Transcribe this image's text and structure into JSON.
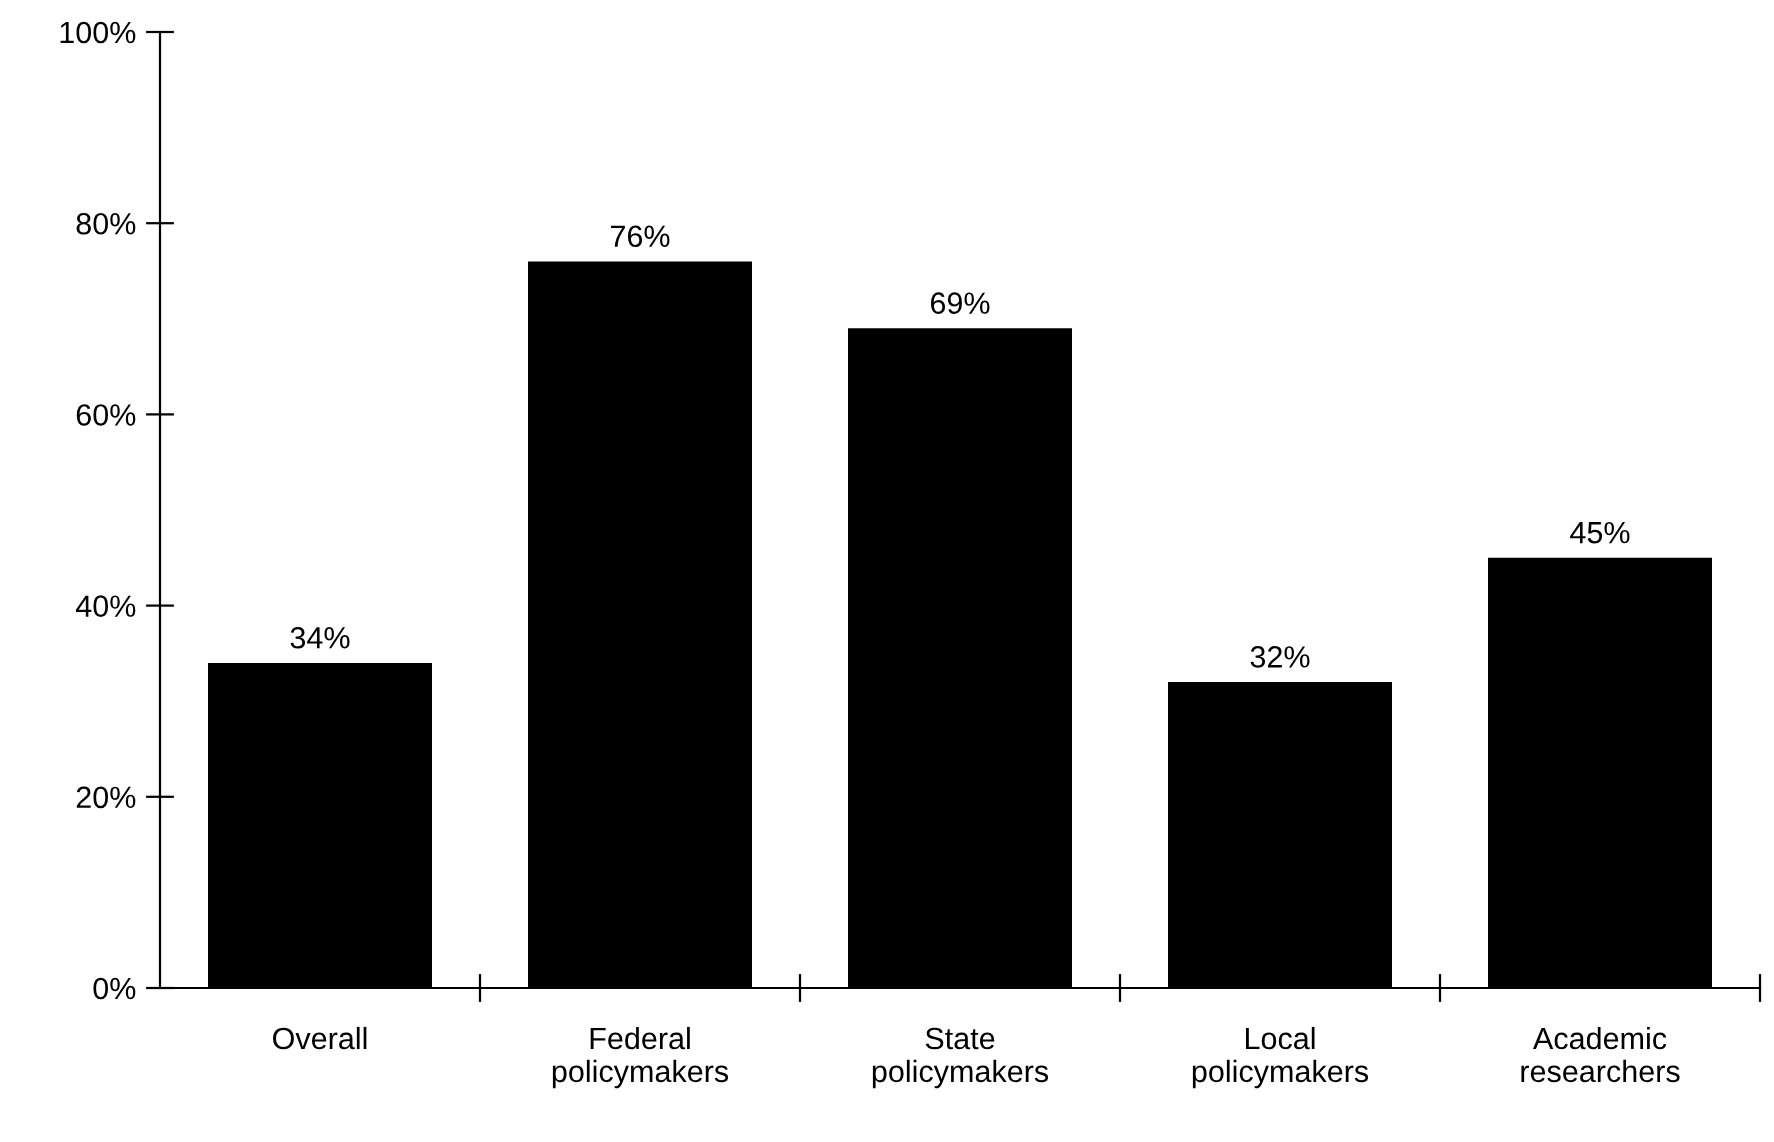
{
  "chart_data": {
    "type": "bar",
    "categories": [
      "Overall",
      "Federal\npolicymakers",
      "State\npolicymakers",
      "Local\npolicymakers",
      "Academic\nresearchers"
    ],
    "values": [
      34,
      76,
      69,
      32,
      45
    ],
    "color": "#000000",
    "value_labels": [
      "34%",
      "76%",
      "69%",
      "32%",
      "45%"
    ],
    "grid": false,
    "legend": false,
    "ylim": [
      0,
      100
    ],
    "yticks": [
      {
        "value": 0,
        "label": "0%"
      },
      {
        "value": 20,
        "label": "20%"
      },
      {
        "value": 40,
        "label": "40%"
      },
      {
        "value": 60,
        "label": "60%"
      },
      {
        "value": 80,
        "label": "80%"
      },
      {
        "value": 100,
        "label": "100%"
      }
    ]
  }
}
